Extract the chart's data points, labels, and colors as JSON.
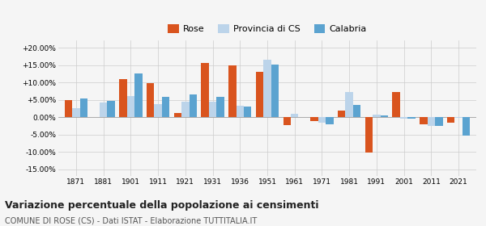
{
  "years": [
    1871,
    1881,
    1901,
    1911,
    1921,
    1931,
    1936,
    1951,
    1961,
    1971,
    1981,
    1991,
    2001,
    2011,
    2021
  ],
  "rose": [
    4.8,
    0.0,
    11.0,
    9.8,
    1.2,
    15.5,
    15.0,
    13.0,
    -2.2,
    -1.2,
    2.0,
    -10.2,
    7.2,
    -2.0,
    -1.5
  ],
  "provincia": [
    2.5,
    4.2,
    6.0,
    3.8,
    4.5,
    4.5,
    3.3,
    16.5,
    1.0,
    -1.5,
    7.2,
    0.8,
    -0.5,
    -2.5,
    -0.2
  ],
  "calabria": [
    5.3,
    4.7,
    12.5,
    5.8,
    6.6,
    5.8,
    3.0,
    15.2,
    0.0,
    -2.0,
    3.5,
    0.5,
    -0.5,
    -2.5,
    -5.2
  ],
  "color_rose": "#d9541e",
  "color_provincia": "#bcd4ea",
  "color_calabria": "#5ba3d0",
  "title": "Variazione percentuale della popolazione ai censimenti",
  "subtitle": "COMUNE DI ROSE (CS) - Dati ISTAT - Elaborazione TUTTITALIA.IT",
  "ylim": [
    -17,
    22
  ],
  "yticks": [
    -15,
    -10,
    -5,
    0,
    5,
    10,
    15,
    20
  ],
  "ytick_labels": [
    "-15.00%",
    "-10.00%",
    "-5.00%",
    "0.00%",
    "+5.00%",
    "+10.00%",
    "+15.00%",
    "+20.00%"
  ],
  "bg_color": "#f5f5f5",
  "bar_width": 0.28
}
